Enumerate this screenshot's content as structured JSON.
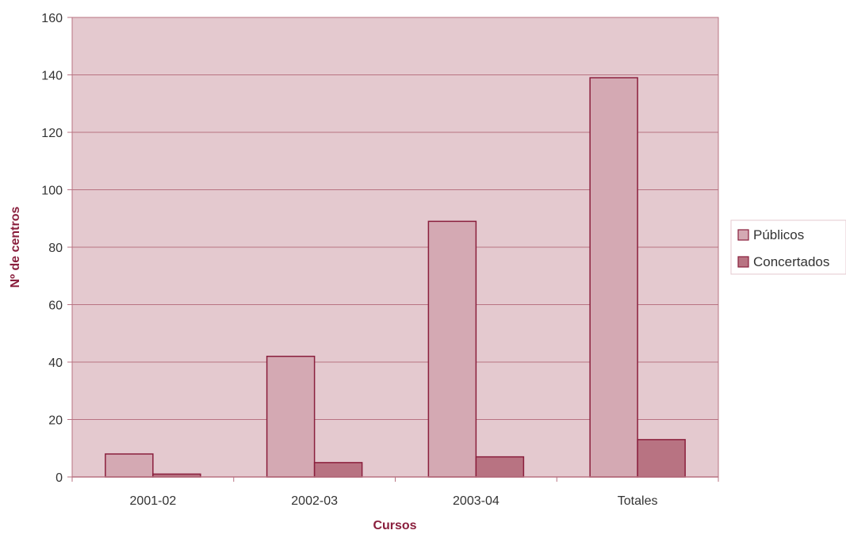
{
  "chart_data": {
    "type": "bar",
    "title": "",
    "xlabel": "Cursos",
    "ylabel": "Nº de centros",
    "categories": [
      "2001-02",
      "2002-03",
      "2003-04",
      "Totales"
    ],
    "series": [
      {
        "name": "Públicos",
        "values": [
          8,
          42,
          89,
          139
        ],
        "color": "#d4a9b3"
      },
      {
        "name": "Concertados",
        "values": [
          1,
          5,
          7,
          13
        ],
        "color": "#b87382"
      }
    ],
    "ylim": [
      0,
      160
    ],
    "yticks": [
      0,
      20,
      40,
      60,
      80,
      100,
      120,
      140,
      160
    ],
    "grid": true,
    "legend_position": "right",
    "colors": {
      "plot_background": "#e4c9cf",
      "gridline": "#b87382",
      "bar_border": "#8a1f3d",
      "axis_title": "#8a1f3d"
    }
  }
}
